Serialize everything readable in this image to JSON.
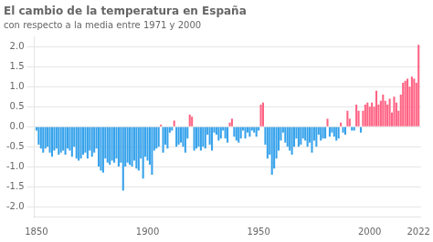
{
  "chart_data": {
    "type": "bar",
    "title": "El cambio de la temperatura en España",
    "subtitle": "con respecto a la media entre 1971 y 2000",
    "x": [
      1850,
      1851,
      1852,
      1853,
      1854,
      1855,
      1856,
      1857,
      1858,
      1859,
      1860,
      1861,
      1862,
      1863,
      1864,
      1865,
      1866,
      1867,
      1868,
      1869,
      1870,
      1871,
      1872,
      1873,
      1874,
      1875,
      1876,
      1877,
      1878,
      1879,
      1880,
      1881,
      1882,
      1883,
      1884,
      1885,
      1886,
      1887,
      1888,
      1889,
      1890,
      1891,
      1892,
      1893,
      1894,
      1895,
      1896,
      1897,
      1898,
      1899,
      1900,
      1901,
      1902,
      1903,
      1904,
      1905,
      1906,
      1907,
      1908,
      1909,
      1910,
      1911,
      1912,
      1913,
      1914,
      1915,
      1916,
      1917,
      1918,
      1919,
      1920,
      1921,
      1922,
      1923,
      1924,
      1925,
      1926,
      1927,
      1928,
      1929,
      1930,
      1931,
      1932,
      1933,
      1934,
      1935,
      1936,
      1937,
      1938,
      1939,
      1940,
      1941,
      1942,
      1943,
      1944,
      1945,
      1946,
      1947,
      1948,
      1949,
      1950,
      1951,
      1952,
      1953,
      1954,
      1955,
      1956,
      1957,
      1958,
      1959,
      1960,
      1961,
      1962,
      1963,
      1964,
      1965,
      1966,
      1967,
      1968,
      1969,
      1970,
      1971,
      1972,
      1973,
      1974,
      1975,
      1976,
      1977,
      1978,
      1979,
      1980,
      1981,
      1982,
      1983,
      1984,
      1985,
      1986,
      1987,
      1988,
      1989,
      1990,
      1991,
      1992,
      1993,
      1994,
      1995,
      1996,
      1997,
      1998,
      1999,
      2000,
      2001,
      2002,
      2003,
      2004,
      2005,
      2006,
      2007,
      2008,
      2009,
      2010,
      2011,
      2012,
      2013,
      2014,
      2015,
      2016,
      2017,
      2018,
      2019,
      2020,
      2021,
      2022
    ],
    "values": [
      -0.1,
      -0.45,
      -0.55,
      -0.65,
      -0.55,
      -0.5,
      -0.65,
      -0.75,
      -0.6,
      -0.55,
      -0.7,
      -0.65,
      -0.6,
      -0.7,
      -0.55,
      -0.6,
      -0.75,
      -0.5,
      -0.8,
      -0.85,
      -0.8,
      -0.7,
      -0.65,
      -0.8,
      -0.6,
      -0.75,
      -0.65,
      -0.55,
      -1.0,
      -1.1,
      -1.15,
      -0.8,
      -0.9,
      -0.95,
      -0.85,
      -0.9,
      -0.8,
      -1.0,
      -0.9,
      -1.6,
      -1.0,
      -0.9,
      -0.95,
      -1.0,
      -0.85,
      -1.05,
      -1.1,
      -0.8,
      -1.3,
      -0.75,
      -0.85,
      -0.95,
      -1.2,
      -0.6,
      -0.55,
      -0.5,
      0.05,
      -0.65,
      -0.45,
      -0.55,
      -0.15,
      -0.1,
      0.15,
      -0.5,
      -0.45,
      -0.4,
      -0.5,
      -0.65,
      -0.3,
      0.3,
      0.25,
      -0.6,
      -0.55,
      -0.5,
      -0.6,
      -0.5,
      -0.55,
      -0.2,
      -0.45,
      -0.6,
      -0.15,
      -0.2,
      -0.35,
      -0.3,
      -0.1,
      -0.3,
      -0.4,
      0.1,
      0.2,
      -0.25,
      -0.35,
      -0.4,
      -0.3,
      -0.1,
      -0.3,
      -0.15,
      -0.25,
      -0.1,
      -0.15,
      -0.25,
      -0.1,
      0.55,
      0.6,
      -0.45,
      -0.8,
      -0.7,
      -1.2,
      -1.05,
      -0.8,
      -0.6,
      -0.35,
      -0.15,
      -0.4,
      -0.5,
      -0.6,
      -0.7,
      -0.5,
      -0.3,
      -0.5,
      -0.45,
      -0.3,
      -0.35,
      -0.5,
      -0.4,
      -0.65,
      -0.35,
      -0.5,
      -0.2,
      -0.35,
      -0.3,
      -0.3,
      0.2,
      -0.25,
      -0.15,
      -0.25,
      -0.35,
      -0.3,
      0.1,
      -0.15,
      -0.2,
      0.4,
      0.2,
      -0.1,
      -0.1,
      0.55,
      0.4,
      -0.15,
      0.4,
      0.55,
      0.6,
      0.5,
      0.6,
      0.5,
      0.9,
      0.55,
      0.65,
      0.8,
      0.65,
      0.55,
      0.7,
      0.35,
      0.75,
      0.6,
      0.4,
      0.8,
      1.1,
      1.15,
      1.2,
      1.0,
      1.25,
      1.2,
      1.1,
      2.05
    ],
    "colors": [
      "#36a2eb",
      "#36a2eb",
      "#36a2eb",
      "#36a2eb",
      "#36a2eb",
      "#36a2eb",
      "#36a2eb",
      "#36a2eb",
      "#36a2eb",
      "#36a2eb",
      "#36a2eb",
      "#36a2eb",
      "#36a2eb",
      "#36a2eb",
      "#36a2eb",
      "#36a2eb",
      "#36a2eb",
      "#36a2eb",
      "#36a2eb",
      "#36a2eb",
      "#36a2eb",
      "#36a2eb",
      "#36a2eb",
      "#36a2eb",
      "#36a2eb",
      "#36a2eb",
      "#36a2eb",
      "#36a2eb",
      "#36a2eb",
      "#36a2eb",
      "#36a2eb",
      "#36a2eb",
      "#36a2eb",
      "#36a2eb",
      "#36a2eb",
      "#36a2eb",
      "#36a2eb",
      "#36a2eb",
      "#36a2eb",
      "#36a2eb",
      "#36a2eb",
      "#36a2eb",
      "#36a2eb",
      "#36a2eb",
      "#36a2eb",
      "#36a2eb",
      "#36a2eb",
      "#36a2eb",
      "#36a2eb",
      "#36a2eb",
      "#36a2eb",
      "#36a2eb",
      "#36a2eb",
      "#36a2eb",
      "#36a2eb",
      "#36a2eb",
      "#ff6384",
      "#36a2eb",
      "#36a2eb",
      "#36a2eb",
      "#36a2eb",
      "#36a2eb",
      "#ff6384",
      "#36a2eb",
      "#36a2eb",
      "#36a2eb",
      "#36a2eb",
      "#36a2eb",
      "#36a2eb",
      "#ff6384",
      "#ff6384",
      "#36a2eb",
      "#36a2eb",
      "#36a2eb",
      "#36a2eb",
      "#36a2eb",
      "#36a2eb",
      "#36a2eb",
      "#36a2eb",
      "#36a2eb",
      "#36a2eb",
      "#36a2eb",
      "#36a2eb",
      "#36a2eb",
      "#36a2eb",
      "#36a2eb",
      "#36a2eb",
      "#ff6384",
      "#ff6384",
      "#36a2eb",
      "#36a2eb",
      "#36a2eb",
      "#36a2eb",
      "#36a2eb",
      "#36a2eb",
      "#36a2eb",
      "#36a2eb",
      "#36a2eb",
      "#36a2eb",
      "#36a2eb",
      "#36a2eb",
      "#ff6384",
      "#ff6384",
      "#36a2eb",
      "#36a2eb",
      "#36a2eb",
      "#36a2eb",
      "#36a2eb",
      "#36a2eb",
      "#36a2eb",
      "#36a2eb",
      "#36a2eb",
      "#36a2eb",
      "#36a2eb",
      "#36a2eb",
      "#36a2eb",
      "#36a2eb",
      "#36a2eb",
      "#36a2eb",
      "#36a2eb",
      "#36a2eb",
      "#36a2eb",
      "#36a2eb",
      "#36a2eb",
      "#36a2eb",
      "#36a2eb",
      "#36a2eb",
      "#36a2eb",
      "#36a2eb",
      "#36a2eb",
      "#36a2eb",
      "#ff6384",
      "#36a2eb",
      "#36a2eb",
      "#36a2eb",
      "#36a2eb",
      "#36a2eb",
      "#ff6384",
      "#36a2eb",
      "#36a2eb",
      "#ff6384",
      "#ff6384",
      "#36a2eb",
      "#36a2eb",
      "#ff6384",
      "#ff6384",
      "#36a2eb",
      "#ff6384",
      "#ff6384",
      "#ff6384",
      "#ff6384",
      "#ff6384",
      "#ff6384",
      "#ff6384",
      "#ff6384",
      "#ff6384",
      "#ff6384",
      "#ff6384",
      "#ff6384",
      "#ff6384",
      "#ff6384",
      "#ff6384",
      "#ff6384",
      "#ff6384",
      "#ff6384",
      "#ff6384",
      "#ff6384",
      "#ff6384",
      "#ff6384",
      "#ff6384",
      "#ff6384",
      "#ff6384",
      "#ff6384"
    ],
    "xlim": [
      1849,
      2023
    ],
    "xticks": [
      1850,
      1900,
      1950,
      2000,
      2022
    ],
    "ylim": [
      -2.25,
      2.25
    ],
    "yticks": [
      {
        "value": -2.0,
        "label": "-2.0"
      },
      {
        "value": -1.5,
        "label": "-1.5"
      },
      {
        "value": -1.0,
        "label": "-1.0"
      },
      {
        "value": -0.5,
        "label": "-0.5"
      },
      {
        "value": 0.0,
        "label": "0.0"
      },
      {
        "value": 0.5,
        "label": "0.5"
      },
      {
        "value": 1.0,
        "label": "1.0"
      },
      {
        "value": 1.5,
        "label": "1.5"
      },
      {
        "value": 2.0,
        "label": "2.0"
      }
    ],
    "grid": "y"
  }
}
